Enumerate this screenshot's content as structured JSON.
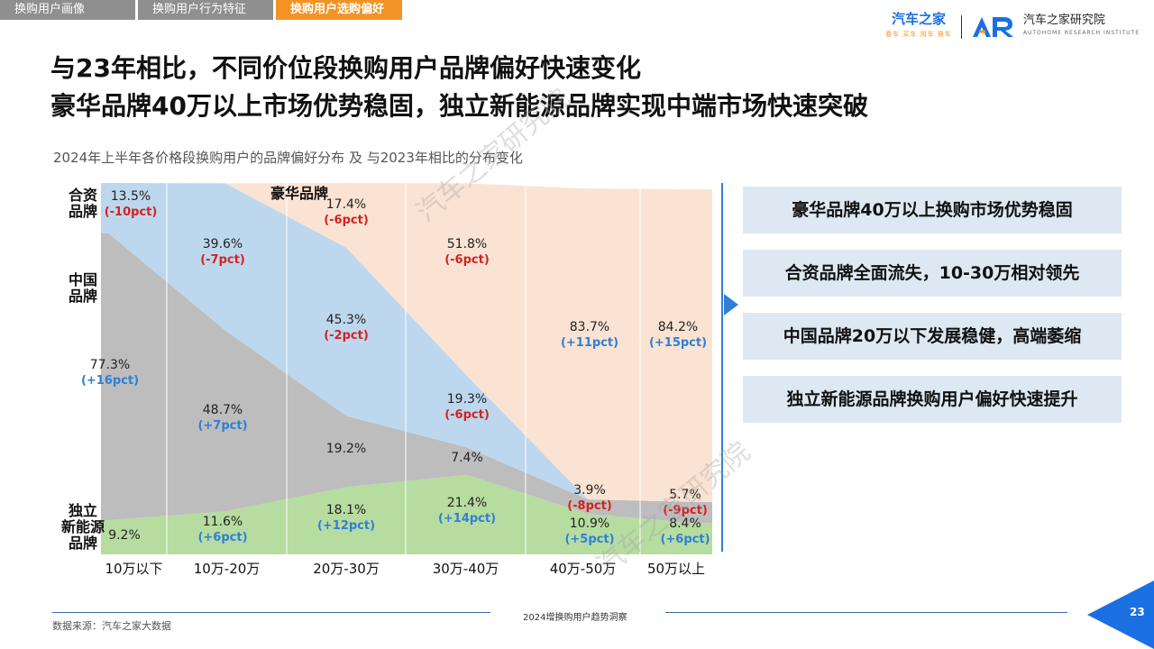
{
  "tabs": [
    {
      "label": "换购用户画像",
      "active": false
    },
    {
      "label": "换购用户行为特征",
      "active": false
    },
    {
      "label": "换购用户选购偏好",
      "active": true
    }
  ],
  "logo": {
    "brand1": "汽车之家",
    "brand1_sub": "看车 买车 用车 换车",
    "brand2": "汽车之家研究院",
    "brand2_sub": "AUTOHOME RESEARCH INSTITUTE"
  },
  "title_line1": "与23年相比，不同价位段换购用户品牌偏好快速变化",
  "title_line2": "豪华品牌40万以上市场优势稳固，独立新能源品牌实现中端市场快速突破",
  "chart_title": "2024年上半年各价格段换购用户的品牌偏好分布 及 与2023年相比的分布变化",
  "watermark_text": "汽车之家研究院",
  "chart_data": {
    "type": "area",
    "stacked": true,
    "percent": true,
    "categories": [
      "10万以下",
      "10万-20万",
      "20万-30万",
      "30万-40万",
      "40万-50万",
      "50万以上"
    ],
    "series": [
      {
        "name": "独立新能源品牌",
        "label": "独立\n新能源\n品牌",
        "color": "#b6dca0",
        "values": [
          9.2,
          11.6,
          18.1,
          21.4,
          10.9,
          8.4
        ],
        "changes": [
          "",
          "(+6pct)",
          "(+12pct)",
          "(+14pct)",
          "(+5pct)",
          "(+6pct)"
        ]
      },
      {
        "name": "中国品牌",
        "label": "中国\n品牌",
        "color": "#bdbdbd",
        "values": [
          77.3,
          48.7,
          19.2,
          7.4,
          3.9,
          5.7
        ],
        "changes": [
          "(+16pct)",
          "(+7pct)",
          "",
          "",
          "(-8pct)",
          "(-9pct)"
        ]
      },
      {
        "name": "合资品牌",
        "label": "合资\n品牌",
        "color": "#bdd7ee",
        "values": [
          13.5,
          39.6,
          45.3,
          19.3,
          0,
          0
        ],
        "changes": [
          "(-10pct)",
          "(-7pct)",
          "(-2pct)",
          "(-6pct)",
          "",
          ""
        ]
      },
      {
        "name": "豪华品牌",
        "label": "豪华品牌",
        "color": "#fbe3d3",
        "values": [
          0,
          0,
          17.4,
          51.8,
          83.7,
          84.2
        ],
        "changes": [
          "",
          "",
          "(-6pct)",
          "(-6pct)",
          "(+11pct)",
          "(+15pct)"
        ]
      }
    ],
    "change_colors": {
      "positive": "#2f7fd6",
      "negative": "#d42222"
    },
    "ylim": [
      0,
      100
    ]
  },
  "callouts": [
    "豪华品牌40万以上换购市场优势稳固",
    "合资品牌全面流失，10-30万相对领先",
    "中国品牌20万以下发展稳健，高端萎缩",
    "独立新能源品牌换购用户偏好快速提升"
  ],
  "footer_center": "2024增换购用户趋势洞察",
  "source": "数据来源：汽车之家大数据",
  "page_number": "23"
}
